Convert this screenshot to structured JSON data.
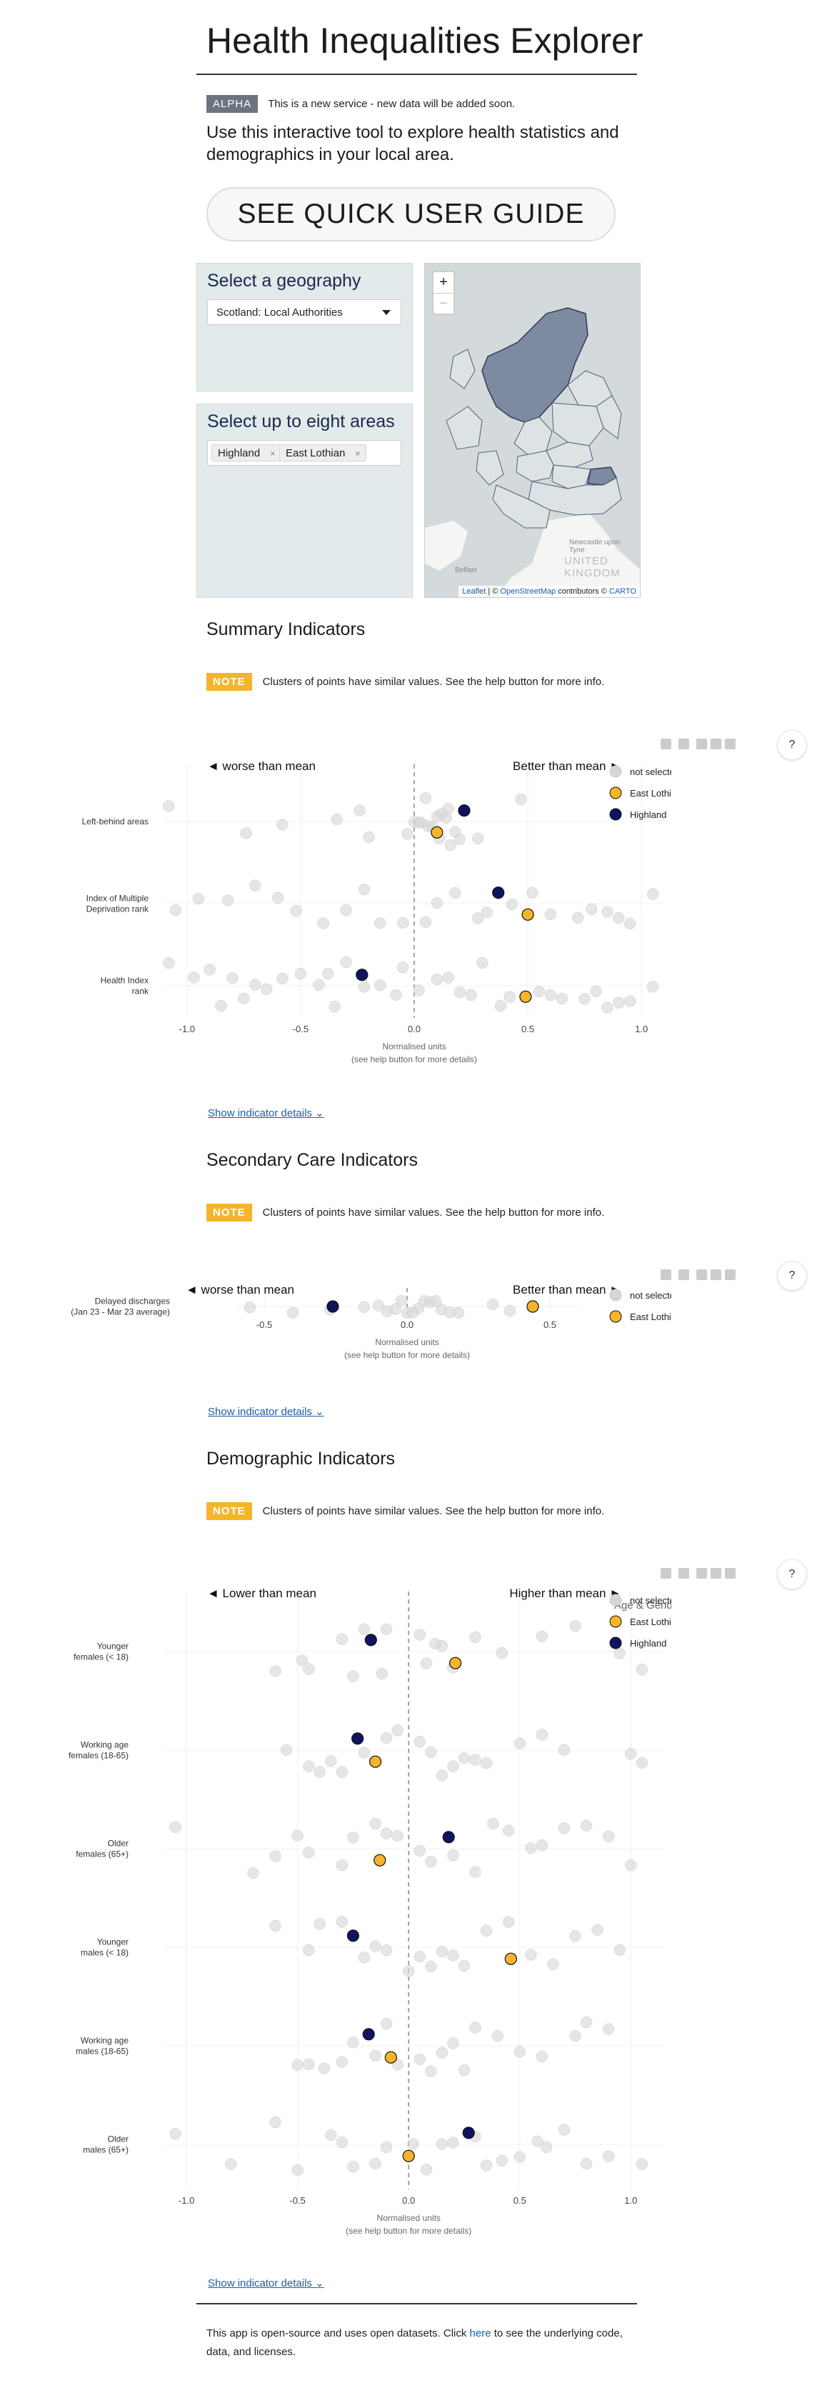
{
  "header": {
    "title": "Health Inequalities Explorer"
  },
  "banner": {
    "badge": "ALPHA",
    "text": "This is a new service - new data will be added soon."
  },
  "intro": "Use this interactive tool to explore health statistics and demographics in your local area.",
  "guide_button": "SEE QUICK USER GUIDE",
  "geography": {
    "title": "Select a geography",
    "selected": "Scotland: Local Authorities"
  },
  "areas": {
    "title": "Select up to eight areas",
    "selected": [
      "Highland",
      "East Lothian"
    ]
  },
  "map": {
    "zoom_in": "+",
    "zoom_out": "−",
    "labels": {
      "city": "Newcastle upon Tyne",
      "country": "UNITED KINGDOM",
      "town": "Belfast"
    },
    "attribution": {
      "leaflet": "Leaflet",
      "sep": " | © ",
      "osm": "OpenStreetMap",
      "contrib": " contributors © ",
      "carto": "CARTO"
    }
  },
  "colors": {
    "highland": "#10145e",
    "east_lothian": "#f4b52a",
    "not_selected": "#d6d6d6"
  },
  "help_label": "?",
  "sections": {
    "summary": {
      "title": "Summary Indicators"
    },
    "secondary": {
      "title": "Secondary Care Indicators"
    },
    "demographic": {
      "title": "Demographic Indicators"
    }
  },
  "note": {
    "badge": "NOTE",
    "text": "Clusters of points have similar values. See the help button for more info."
  },
  "show_details": "Show indicator details",
  "footer": {
    "pre": "This app is open-source and uses open datasets. Click ",
    "link": "here",
    "post": " to see the underlying code, data, and licenses."
  },
  "toolbar_icons": [
    "camera-icon",
    "pan-icon",
    "zoom-in-icon",
    "zoom-out-icon",
    "home-icon"
  ],
  "chart_data": [
    {
      "type": "scatter",
      "left_label": "◄  worse than mean",
      "right_label": "Better than mean  ►",
      "xlabel": "Normalised units",
      "xlabel2": "(see help button for more details)",
      "xlim": [
        -1.1,
        1.1
      ],
      "xticks": [
        -1.0,
        -0.5,
        0.0,
        0.5,
        1.0
      ],
      "categories": [
        {
          "label": [
            "Left-behind areas"
          ]
        },
        {
          "label": [
            "Index of Multiple",
            "Deprivation rank"
          ]
        },
        {
          "label": [
            "Health Index",
            "rank"
          ]
        }
      ],
      "legend": [
        "not selected",
        "East Lothian",
        "Highland"
      ],
      "series": [
        {
          "name": "East Lothian",
          "values": [
            0.1,
            0.5,
            0.49
          ]
        },
        {
          "name": "Highland",
          "values": [
            0.22,
            0.37,
            -0.23
          ]
        }
      ],
      "background": [
        [
          -1.08,
          -0.74,
          -0.58,
          -0.34,
          -0.24,
          -0.2,
          -0.03,
          0.0,
          0.02,
          0.03,
          0.05,
          0.06,
          0.08,
          0.1,
          0.11,
          0.12,
          0.14,
          0.15,
          0.16,
          0.18,
          0.2,
          0.28,
          0.47
        ],
        [
          -1.05,
          -0.95,
          -0.82,
          -0.7,
          -0.6,
          -0.52,
          -0.4,
          -0.3,
          -0.22,
          -0.15,
          -0.05,
          0.05,
          0.1,
          0.18,
          0.28,
          0.32,
          0.43,
          0.52,
          0.6,
          0.72,
          0.78,
          0.85,
          0.9,
          0.95,
          1.05
        ],
        [
          -1.08,
          -0.97,
          -0.9,
          -0.85,
          -0.8,
          -0.75,
          -0.7,
          -0.65,
          -0.58,
          -0.5,
          -0.42,
          -0.38,
          -0.35,
          -0.3,
          -0.22,
          -0.15,
          -0.08,
          -0.05,
          0.02,
          0.1,
          0.15,
          0.2,
          0.25,
          0.3,
          0.38,
          0.42,
          0.55,
          0.6,
          0.65,
          0.75,
          0.8,
          0.85,
          0.9,
          0.95,
          1.05
        ]
      ]
    },
    {
      "type": "scatter",
      "left_label": "◄  worse than mean",
      "right_label": "Better than mean  ►",
      "xlabel": "Normalised units",
      "xlabel2": "(see help button for more details)",
      "xlim": [
        -0.6,
        0.6
      ],
      "xticks": [
        -0.5,
        0.0,
        0.5
      ],
      "categories": [
        {
          "label": [
            "Delayed discharges",
            "(Jan 23 - Mar 23 average)"
          ]
        }
      ],
      "legend": [
        "not selected",
        "East Lothian"
      ],
      "series": [
        {
          "name": "East Lothian",
          "values": [
            0.44
          ]
        },
        {
          "name": "Highland",
          "values": [
            -0.26
          ]
        }
      ],
      "background": [
        [
          -0.55,
          -0.4,
          -0.27,
          -0.15,
          -0.1,
          -0.07,
          -0.04,
          -0.02,
          0.0,
          0.02,
          0.04,
          0.06,
          0.08,
          0.1,
          0.12,
          0.15,
          0.18,
          0.3,
          0.36
        ]
      ]
    },
    {
      "type": "scatter",
      "left_label": "◄  Lower than mean",
      "right_label": "Higher than mean  ►",
      "subtitle": "Age & Gender",
      "xlabel": "Normalised units",
      "xlabel2": "(see help button for more details)",
      "xlim": [
        -1.1,
        1.15
      ],
      "xticks": [
        -1.0,
        -0.5,
        0.0,
        0.5,
        1.0
      ],
      "categories": [
        {
          "label": [
            "Younger",
            "females (< 18)"
          ]
        },
        {
          "label": [
            "Working age",
            "females (18-65)"
          ]
        },
        {
          "label": [
            "Older",
            "females (65+)"
          ]
        },
        {
          "label": [
            "Younger",
            "males (< 18)"
          ]
        },
        {
          "label": [
            "Working age",
            "males (18-65)"
          ]
        },
        {
          "label": [
            "Older",
            "males (65+)"
          ]
        }
      ],
      "legend": [
        "not selected",
        "East Lothian",
        "Highland"
      ],
      "series": [
        {
          "name": "East Lothian",
          "values": [
            0.21,
            -0.15,
            -0.13,
            0.46,
            -0.08,
            0.0
          ]
        },
        {
          "name": "Highland",
          "values": [
            -0.17,
            -0.23,
            0.18,
            -0.25,
            -0.18,
            0.27
          ]
        }
      ],
      "background": [
        [
          -0.6,
          -0.48,
          -0.45,
          -0.3,
          -0.25,
          -0.2,
          -0.12,
          -0.1,
          0.05,
          0.08,
          0.12,
          0.15,
          0.2,
          0.3,
          0.42,
          0.6,
          0.75,
          0.95,
          1.05
        ],
        [
          -0.55,
          -0.45,
          -0.4,
          -0.35,
          -0.3,
          -0.2,
          -0.1,
          -0.05,
          0.05,
          0.1,
          0.15,
          0.2,
          0.25,
          0.3,
          0.35,
          0.5,
          0.6,
          0.7,
          1.0,
          1.05
        ],
        [
          -1.05,
          -0.7,
          -0.6,
          -0.5,
          -0.45,
          -0.3,
          -0.25,
          -0.15,
          -0.1,
          -0.05,
          0.05,
          0.1,
          0.2,
          0.3,
          0.38,
          0.45,
          0.55,
          0.6,
          0.7,
          0.8,
          0.9,
          1.0
        ],
        [
          -0.6,
          -0.45,
          -0.4,
          -0.3,
          -0.2,
          -0.15,
          -0.1,
          0.0,
          0.05,
          0.1,
          0.15,
          0.2,
          0.25,
          0.35,
          0.45,
          0.55,
          0.65,
          0.75,
          0.85,
          0.95
        ],
        [
          -0.5,
          -0.45,
          -0.38,
          -0.3,
          -0.25,
          -0.15,
          -0.1,
          -0.05,
          0.05,
          0.1,
          0.15,
          0.2,
          0.25,
          0.3,
          0.4,
          0.5,
          0.6,
          0.75,
          0.8,
          0.9
        ],
        [
          -1.05,
          -0.8,
          -0.6,
          -0.5,
          -0.35,
          -0.3,
          -0.25,
          -0.15,
          -0.1,
          0.02,
          0.08,
          0.15,
          0.2,
          0.3,
          0.35,
          0.42,
          0.5,
          0.58,
          0.62,
          0.7,
          0.8,
          0.9,
          1.05
        ]
      ]
    }
  ]
}
